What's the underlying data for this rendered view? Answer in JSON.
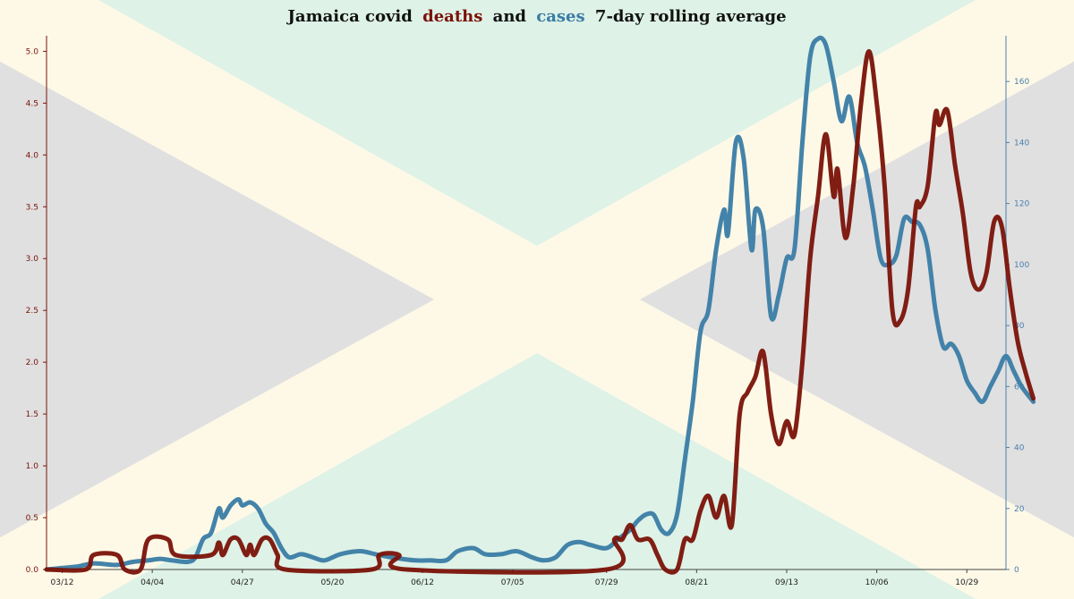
{
  "chart_data": {
    "type": "line",
    "title": {
      "prefix": "Jamaica covid",
      "series1_word": "deaths",
      "middle": "and",
      "series2_word": "cases",
      "suffix": "7-day rolling average"
    },
    "x_start": "03/08",
    "x_end": "11/08",
    "x_ticks": [
      "03/12",
      "04/04",
      "04/27",
      "05/20",
      "06/12",
      "07/05",
      "07/29",
      "08/21",
      "09/13",
      "10/06",
      "10/29"
    ],
    "y_left": {
      "ticks": [
        "0.0",
        "0.5",
        "1.0",
        "1.5",
        "2.0",
        "2.5",
        "3.0",
        "3.5",
        "4.0",
        "4.5",
        "5.0"
      ],
      "lim": [
        0,
        5.15
      ]
    },
    "y_right": {
      "ticks": [
        "0",
        "20",
        "40",
        "60",
        "80",
        "100",
        "120",
        "140",
        "160"
      ],
      "lim": [
        0,
        175
      ]
    },
    "background": {
      "flag": "Jamaica",
      "colors": {
        "yellow": "#fef9e7",
        "green": "#def2e7",
        "black": "#e0e0e0"
      }
    },
    "series": [
      {
        "key": "deaths",
        "axis": "left",
        "color": "#7a1208",
        "points": [
          [
            "03/08",
            0
          ],
          [
            "03/18",
            0
          ],
          [
            "03/20",
            0.14
          ],
          [
            "03/26",
            0.14
          ],
          [
            "03/28",
            0
          ],
          [
            "04/01",
            0
          ],
          [
            "04/03",
            0.29
          ],
          [
            "04/08",
            0.29
          ],
          [
            "04/10",
            0.14
          ],
          [
            "04/19",
            0.14
          ],
          [
            "04/21",
            0.26
          ],
          [
            "04/22",
            0.14
          ],
          [
            "04/24",
            0.29
          ],
          [
            "04/26",
            0.29
          ],
          [
            "04/28",
            0.14
          ],
          [
            "04/29",
            0.24
          ],
          [
            "04/30",
            0.14
          ],
          [
            "05/02",
            0.29
          ],
          [
            "05/04",
            0.29
          ],
          [
            "05/06",
            0.14
          ],
          [
            "05/08",
            0
          ],
          [
            "05/30",
            0
          ],
          [
            "06/01",
            0.14
          ],
          [
            "06/06",
            0.14
          ],
          [
            "06/08",
            0
          ],
          [
            "07/29",
            0
          ],
          [
            "07/31",
            0.29
          ],
          [
            "08/02",
            0.29
          ],
          [
            "08/04",
            0.43
          ],
          [
            "08/06",
            0.29
          ],
          [
            "08/09",
            0.29
          ],
          [
            "08/11",
            0.14
          ],
          [
            "08/13",
            0
          ],
          [
            "08/16",
            0
          ],
          [
            "08/18",
            0.29
          ],
          [
            "08/20",
            0.29
          ],
          [
            "08/22",
            0.57
          ],
          [
            "08/24",
            0.71
          ],
          [
            "08/26",
            0.5
          ],
          [
            "08/28",
            0.71
          ],
          [
            "08/30",
            0.43
          ],
          [
            "09/01",
            1.5
          ],
          [
            "09/03",
            1.71
          ],
          [
            "09/05",
            1.86
          ],
          [
            "09/07",
            2.1
          ],
          [
            "09/09",
            1.5
          ],
          [
            "09/11",
            1.21
          ],
          [
            "09/13",
            1.43
          ],
          [
            "09/15",
            1.3
          ],
          [
            "09/17",
            2.0
          ],
          [
            "09/19",
            3.0
          ],
          [
            "09/21",
            3.6
          ],
          [
            "09/23",
            4.2
          ],
          [
            "09/25",
            3.6
          ],
          [
            "09/26",
            3.86
          ],
          [
            "09/28",
            3.2
          ],
          [
            "09/30",
            3.7
          ],
          [
            "10/02",
            4.5
          ],
          [
            "10/04",
            5.0
          ],
          [
            "10/06",
            4.5
          ],
          [
            "10/08",
            3.7
          ],
          [
            "10/10",
            2.5
          ],
          [
            "10/12",
            2.4
          ],
          [
            "10/14",
            2.7
          ],
          [
            "10/16",
            3.5
          ],
          [
            "10/17",
            3.5
          ],
          [
            "10/19",
            3.7
          ],
          [
            "10/21",
            4.4
          ],
          [
            "10/22",
            4.29
          ],
          [
            "10/24",
            4.43
          ],
          [
            "10/26",
            3.9
          ],
          [
            "10/28",
            3.43
          ],
          [
            "10/30",
            2.86
          ],
          [
            "11/01",
            2.7
          ],
          [
            "11/03",
            2.86
          ],
          [
            "11/05",
            3.36
          ],
          [
            "11/07",
            3.3
          ],
          [
            "11/09",
            2.7
          ],
          [
            "11/11",
            2.2
          ],
          [
            "11/13",
            1.9
          ],
          [
            "11/15",
            1.65
          ]
        ]
      },
      {
        "key": "cases",
        "axis": "right",
        "color": "#3a7ca5",
        "points": [
          [
            "03/08",
            0
          ],
          [
            "03/12",
            0.5
          ],
          [
            "03/16",
            1
          ],
          [
            "03/20",
            2
          ],
          [
            "03/26",
            1.5
          ],
          [
            "03/30",
            2.5
          ],
          [
            "04/03",
            3
          ],
          [
            "04/06",
            3.5
          ],
          [
            "04/09",
            3
          ],
          [
            "04/13",
            2.5
          ],
          [
            "04/15",
            4
          ],
          [
            "04/17",
            10
          ],
          [
            "04/19",
            12
          ],
          [
            "04/21",
            20
          ],
          [
            "04/22",
            17
          ],
          [
            "04/24",
            21
          ],
          [
            "04/26",
            23
          ],
          [
            "04/27",
            21
          ],
          [
            "04/29",
            22
          ],
          [
            "05/01",
            20
          ],
          [
            "05/03",
            15
          ],
          [
            "05/05",
            12
          ],
          [
            "05/07",
            7
          ],
          [
            "05/09",
            4
          ],
          [
            "05/12",
            5
          ],
          [
            "05/15",
            4
          ],
          [
            "05/18",
            3
          ],
          [
            "05/22",
            5
          ],
          [
            "05/27",
            6
          ],
          [
            "05/31",
            5
          ],
          [
            "06/04",
            4
          ],
          [
            "06/10",
            3
          ],
          [
            "06/14",
            3
          ],
          [
            "06/18",
            3
          ],
          [
            "06/21",
            6
          ],
          [
            "06/25",
            7
          ],
          [
            "06/28",
            5
          ],
          [
            "07/02",
            5
          ],
          [
            "07/06",
            6
          ],
          [
            "07/10",
            4
          ],
          [
            "07/13",
            3
          ],
          [
            "07/16",
            4
          ],
          [
            "07/19",
            8
          ],
          [
            "07/22",
            9
          ],
          [
            "07/25",
            8
          ],
          [
            "07/29",
            7
          ],
          [
            "08/01",
            10
          ],
          [
            "08/04",
            13
          ],
          [
            "08/06",
            16
          ],
          [
            "08/08",
            18
          ],
          [
            "08/10",
            18
          ],
          [
            "08/12",
            13
          ],
          [
            "08/14",
            12
          ],
          [
            "08/16",
            18
          ],
          [
            "08/18",
            36
          ],
          [
            "08/20",
            55
          ],
          [
            "08/22",
            78
          ],
          [
            "08/24",
            85
          ],
          [
            "08/26",
            105
          ],
          [
            "08/28",
            118
          ],
          [
            "08/29",
            110
          ],
          [
            "08/31",
            140
          ],
          [
            "09/02",
            135
          ],
          [
            "09/04",
            105
          ],
          [
            "09/05",
            118
          ],
          [
            "09/07",
            112
          ],
          [
            "09/09",
            83
          ],
          [
            "09/11",
            90
          ],
          [
            "09/13",
            102
          ],
          [
            "09/15",
            105
          ],
          [
            "09/17",
            140
          ],
          [
            "09/19",
            168
          ],
          [
            "09/21",
            174
          ],
          [
            "09/23",
            172
          ],
          [
            "09/25",
            160
          ],
          [
            "09/27",
            147
          ],
          [
            "09/29",
            155
          ],
          [
            "10/01",
            140
          ],
          [
            "10/03",
            132
          ],
          [
            "10/05",
            118
          ],
          [
            "10/07",
            102
          ],
          [
            "10/09",
            100
          ],
          [
            "10/11",
            103
          ],
          [
            "10/13",
            115
          ],
          [
            "10/15",
            114
          ],
          [
            "10/17",
            113
          ],
          [
            "10/19",
            105
          ],
          [
            "10/21",
            85
          ],
          [
            "10/23",
            73
          ],
          [
            "10/25",
            74
          ],
          [
            "10/27",
            70
          ],
          [
            "10/29",
            62
          ],
          [
            "10/31",
            58
          ],
          [
            "11/02",
            55
          ],
          [
            "11/04",
            60
          ],
          [
            "11/06",
            65
          ],
          [
            "11/08",
            70
          ],
          [
            "11/10",
            65
          ],
          [
            "11/12",
            60
          ],
          [
            "11/15",
            55
          ]
        ]
      }
    ]
  }
}
